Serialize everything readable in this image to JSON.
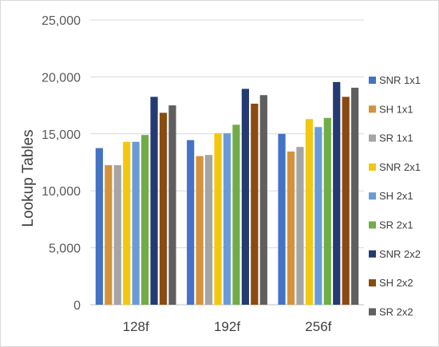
{
  "chart_data": {
    "type": "bar",
    "title": "",
    "xlabel": "",
    "ylabel": "Lookup Tables",
    "ylim": [
      0,
      25000
    ],
    "yticks": [
      0,
      5000,
      10000,
      15000,
      20000,
      25000
    ],
    "ytick_labels": [
      "0",
      "5,000",
      "10,000",
      "15,000",
      "20,000",
      "25,000"
    ],
    "categories": [
      "128f",
      "192f",
      "256f"
    ],
    "grid": true,
    "legend_position": "right",
    "series": [
      {
        "name": "SNR 1x1",
        "color": "#4472c4",
        "values": [
          13750,
          14450,
          15000
        ]
      },
      {
        "name": "SH 1x1",
        "color": "#d5923b",
        "values": [
          12250,
          13050,
          13450
        ]
      },
      {
        "name": "SR 1x1",
        "color": "#a5a5a5",
        "values": [
          12250,
          13150,
          13850
        ]
      },
      {
        "name": "SNR 2x1",
        "color": "#f2c80f",
        "values": [
          14300,
          15050,
          16300
        ]
      },
      {
        "name": "SH 2x1",
        "color": "#6a9bd8",
        "values": [
          14300,
          15050,
          15600
        ]
      },
      {
        "name": "SR 2x1",
        "color": "#70ad47",
        "values": [
          14900,
          15800,
          16400
        ]
      },
      {
        "name": "SNR 2x2",
        "color": "#243a72",
        "values": [
          18250,
          18950,
          19550
        ]
      },
      {
        "name": "SH 2x2",
        "color": "#8b4a0f",
        "values": [
          16850,
          17650,
          18250
        ]
      },
      {
        "name": "SR 2x2",
        "color": "#5f5f5f",
        "values": [
          17500,
          18400,
          19050
        ]
      }
    ]
  }
}
